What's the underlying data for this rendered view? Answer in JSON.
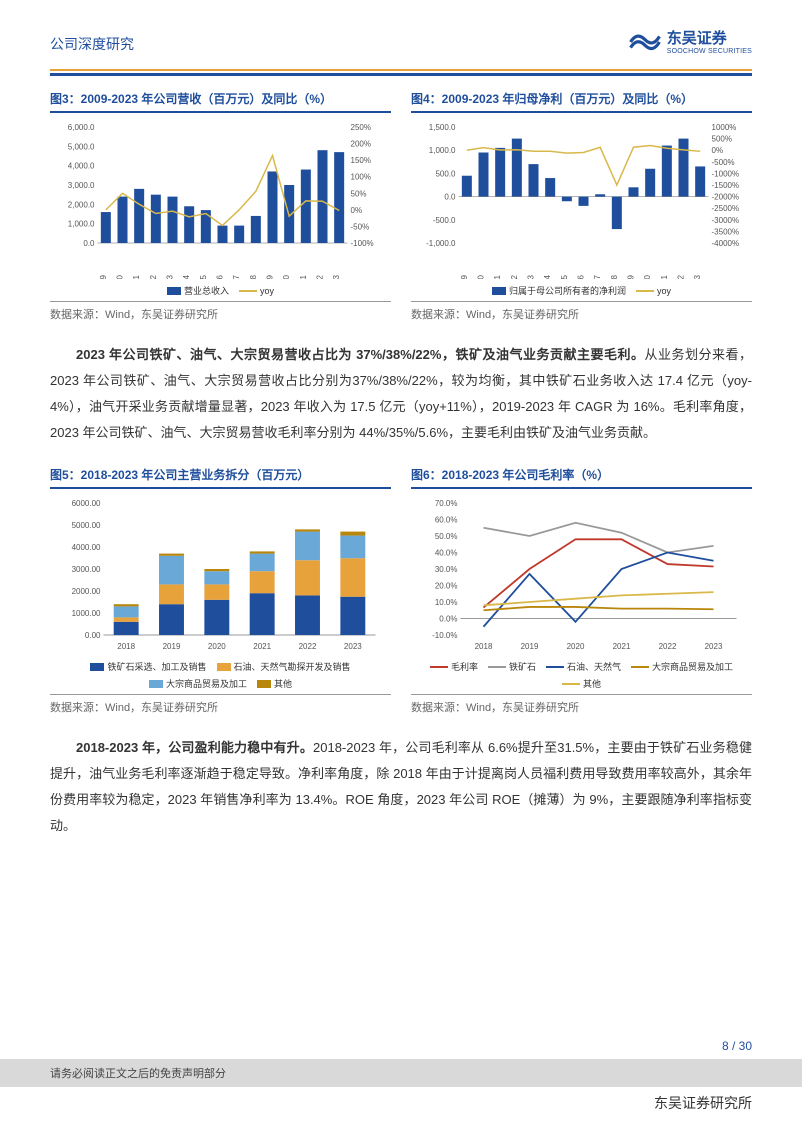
{
  "header": {
    "title": "公司深度研究",
    "logo_cn": "东吴证券",
    "logo_en": "SOOCHOW SECURITIES"
  },
  "source": "数据来源：Wind，东吴证券研究所",
  "page_num": "8 / 30",
  "disclaimer": "请务必阅读正文之后的免责声明部分",
  "footer_brand": "东吴证券研究所",
  "paragraph1": "2023 年公司铁矿、油气、大宗贸易营收占比为 37%/38%/22%，铁矿及油气业务贡献主要毛利。",
  "paragraph1_rest": "从业务划分来看，2023 年公司铁矿、油气、大宗贸易营收占比分别为37%/38%/22%，较为均衡，其中铁矿石业务收入达 17.4 亿元（yoy-4%），油气开采业务贡献增量显著，2023 年收入为 17.5 亿元（yoy+11%），2019-2023 年 CAGR 为 16%。毛利率角度，2023 年公司铁矿、油气、大宗贸易营收毛利率分别为 44%/35%/5.6%，主要毛利由铁矿及油气业务贡献。",
  "paragraph2": "2018-2023 年，公司盈利能力稳中有升。",
  "paragraph2_rest": "2018-2023 年，公司毛利率从 6.6%提升至31.5%，主要由于铁矿石业务稳健提升，油气业务毛利率逐渐趋于稳定导致。净利率角度，除 2018 年由于计提离岗人员福利费用导致费用率较高外，其余年份费用率较为稳定，2023 年销售净利率为 13.4%。ROE 角度，2023 年公司 ROE（摊薄）为 9%，主要跟随净利率指标变动。",
  "chart3": {
    "title": "图3：2009-2023 年公司营收（百万元）及同比（%）",
    "type": "bar_line_dual_axis",
    "years": [
      "2009",
      "2010",
      "2011",
      "2012",
      "2013",
      "2014",
      "2015",
      "2016",
      "2017",
      "2018",
      "2019",
      "2020",
      "2021",
      "2022",
      "2023"
    ],
    "bars": [
      1600,
      2400,
      2800,
      2500,
      2400,
      1900,
      1700,
      900,
      900,
      1400,
      3700,
      3000,
      3800,
      4800,
      4700
    ],
    "line_yoy": [
      0,
      50,
      17,
      -11,
      -4,
      -21,
      -11,
      -47,
      0,
      56,
      164,
      -19,
      27,
      26,
      -2
    ],
    "y_left_ticks": [
      "0.0",
      "1,000.0",
      "2,000.0",
      "3,000.0",
      "4,000.0",
      "5,000.0",
      "6,000.0"
    ],
    "y_left_max": 6000,
    "y_right_ticks": [
      "-100%",
      "-50%",
      "0%",
      "50%",
      "100%",
      "150%",
      "200%",
      "250%"
    ],
    "y_right_min": -100,
    "y_right_max": 250,
    "bar_color": "#1f4e9c",
    "line_color": "#d9b84a",
    "bg": "#ffffff",
    "legend": [
      {
        "label": "营业总收入",
        "type": "box",
        "color": "#1f4e9c"
      },
      {
        "label": "yoy",
        "type": "line",
        "color": "#d9b84a"
      }
    ]
  },
  "chart4": {
    "title": "图4：2009-2023 年归母净利（百万元）及同比（%）",
    "type": "bar_line_dual_axis",
    "years": [
      "2009",
      "2010",
      "2011",
      "2012",
      "2013",
      "2014",
      "2015",
      "2016",
      "2017",
      "2018",
      "2019",
      "2020",
      "2021",
      "2022",
      "2023"
    ],
    "bars": [
      450,
      950,
      1050,
      1250,
      700,
      400,
      -100,
      -200,
      50,
      -700,
      200,
      600,
      1100,
      1250,
      650
    ],
    "line_yoy": [
      0,
      110,
      11,
      19,
      -44,
      -43,
      -125,
      -100,
      125,
      -1500,
      129,
      200,
      83,
      14,
      -48
    ],
    "y_left_ticks": [
      "-1,000.0",
      "-500.0",
      "0.0",
      "500.0",
      "1,000.0",
      "1,500.0"
    ],
    "y_left_min": -1000,
    "y_left_max": 1500,
    "y_right_ticks": [
      "-4000%",
      "-3500%",
      "-3000%",
      "-2500%",
      "-2000%",
      "-1500%",
      "-1000%",
      "-500%",
      "0%",
      "500%",
      "1000%"
    ],
    "y_right_min": -4000,
    "y_right_max": 1000,
    "bar_color": "#1f4e9c",
    "line_color": "#d9b84a",
    "bg": "#ffffff",
    "legend": [
      {
        "label": "归属于母公司所有者的净利润",
        "type": "box",
        "color": "#1f4e9c"
      },
      {
        "label": "yoy",
        "type": "line",
        "color": "#d9b84a"
      }
    ]
  },
  "chart5": {
    "title": "图5：2018-2023 年公司主营业务拆分（百万元）",
    "type": "stacked_bar",
    "years": [
      "2018",
      "2019",
      "2020",
      "2021",
      "2022",
      "2023"
    ],
    "series": [
      {
        "label": "铁矿石采选、加工及销售",
        "color": "#1f4e9c",
        "data": [
          600,
          1400,
          1600,
          1900,
          1800,
          1740
        ]
      },
      {
        "label": "石油、天然气勘探开发及销售",
        "color": "#e8a23c",
        "data": [
          200,
          900,
          700,
          1000,
          1600,
          1750
        ]
      },
      {
        "label": "大宗商品贸易及加工",
        "color": "#6aa8d8",
        "data": [
          500,
          1300,
          600,
          800,
          1300,
          1030
        ]
      },
      {
        "label": "其他",
        "color": "#b8860b",
        "data": [
          100,
          100,
          100,
          100,
          100,
          180
        ]
      }
    ],
    "y_ticks": [
      "0.00",
      "1000.00",
      "2000.00",
      "3000.00",
      "4000.00",
      "5000.00",
      "6000.00"
    ],
    "y_max": 6000,
    "bg": "#ffffff"
  },
  "chart6": {
    "title": "图6：2018-2023 年公司毛利率（%）",
    "type": "line",
    "years": [
      "2018",
      "2019",
      "2020",
      "2021",
      "2022",
      "2023"
    ],
    "series": [
      {
        "label": "毛利率",
        "color": "#c0392b",
        "data": [
          6.6,
          30,
          48,
          48,
          33,
          31.5
        ]
      },
      {
        "label": "铁矿石",
        "color": "#999999",
        "data": [
          55,
          50,
          58,
          52,
          40,
          44
        ]
      },
      {
        "label": "石油、天然气",
        "color": "#1f4e9c",
        "data": [
          -5,
          27,
          -2,
          30,
          40,
          35
        ]
      },
      {
        "label": "大宗商品贸易及加工",
        "color": "#b8860b",
        "data": [
          5,
          7,
          7,
          6,
          6,
          5.6
        ]
      },
      {
        "label": "其他",
        "color": "#d9b84a",
        "data": [
          8,
          10,
          12,
          14,
          15,
          16
        ]
      }
    ],
    "y_ticks": [
      "-10.0%",
      "0.0%",
      "10.0%",
      "20.0%",
      "30.0%",
      "40.0%",
      "50.0%",
      "60.0%",
      "70.0%"
    ],
    "y_min": -10,
    "y_max": 70,
    "bg": "#ffffff"
  }
}
